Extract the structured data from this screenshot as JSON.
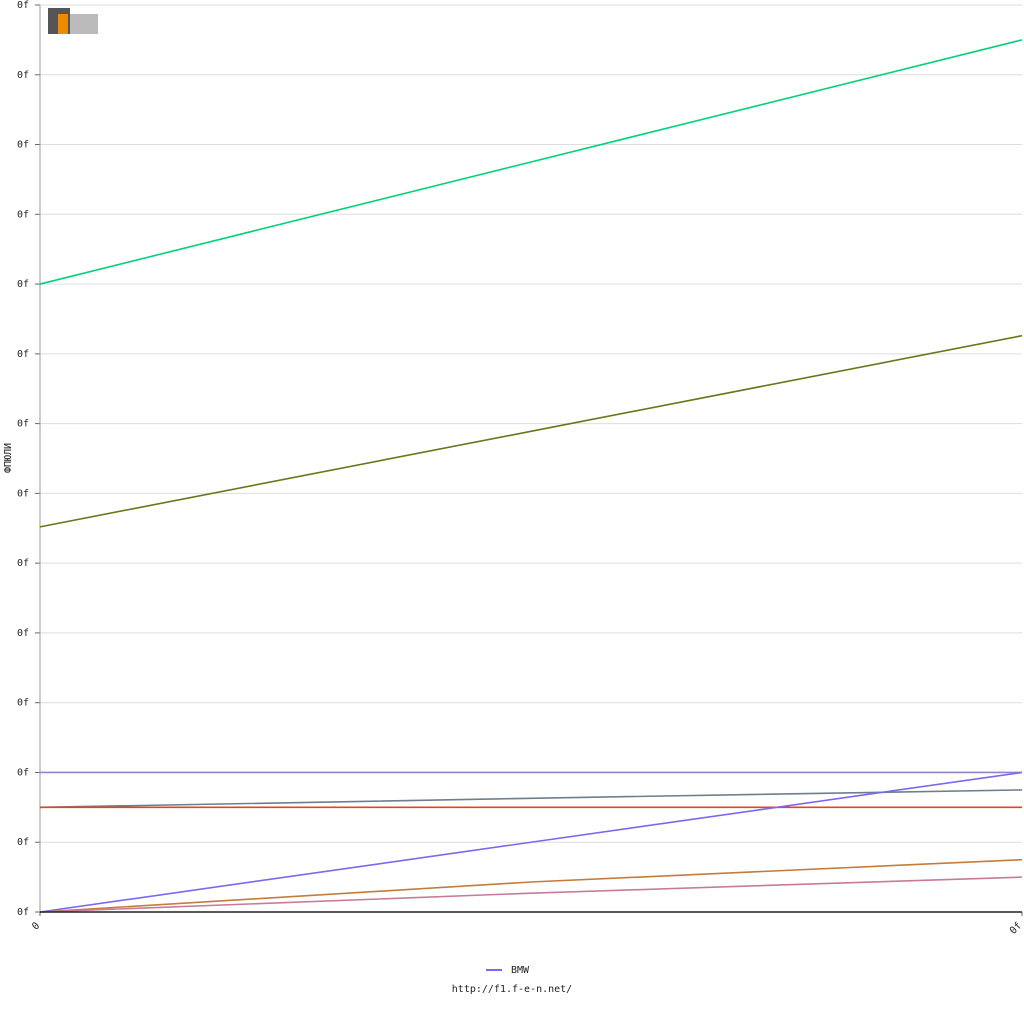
{
  "chart_data": {
    "type": "line",
    "y_label": "ФПЮЛИ",
    "footer": "http://f1.f-e-n.net/",
    "x": [
      0,
      0.5,
      1
    ],
    "xlim": [
      0,
      1
    ],
    "xticks": [
      0,
      {
        "value": 1,
        "label": "0f"
      }
    ],
    "ylim": [
      0,
      13
    ],
    "yticks": [
      {
        "value": 0,
        "label": "0f"
      },
      {
        "value": 1,
        "label": "0f"
      },
      {
        "value": 2,
        "label": "0f"
      },
      {
        "value": 3,
        "label": "0f"
      },
      {
        "value": 4,
        "label": "0f"
      },
      {
        "value": 5,
        "label": "0f"
      },
      {
        "value": 6,
        "label": "0f"
      },
      {
        "value": 7,
        "label": "0f"
      },
      {
        "value": 8,
        "label": "0f"
      },
      {
        "value": 9,
        "label": "0f"
      },
      {
        "value": 10,
        "label": "0f"
      },
      {
        "value": 11,
        "label": "0f"
      },
      {
        "value": 12,
        "label": "0f"
      },
      {
        "value": 13,
        "label": "0f"
      }
    ],
    "grid": true,
    "series": [
      {
        "color": "#00d27a",
        "values": [
          9.0,
          10.75,
          12.5
        ]
      },
      {
        "color": "#66781a",
        "values": [
          5.52,
          6.89,
          8.26
        ]
      },
      {
        "color": "#9a7ed0",
        "values": [
          2.0,
          2.0,
          2.0
        ]
      },
      {
        "color": "#6e7f8c",
        "values": [
          1.5,
          1.63,
          1.75
        ]
      },
      {
        "color": "#e04818",
        "values": [
          1.5,
          1.5,
          1.5
        ]
      },
      {
        "name": "BMW",
        "color": "#7b68ee",
        "values": [
          0,
          1.0,
          2.0
        ]
      },
      {
        "color": "#c47c3c",
        "values": [
          0,
          0.43,
          0.75
        ]
      },
      {
        "color": "#c87a98",
        "values": [
          0,
          0.27,
          0.5
        ]
      },
      {
        "color": "#222222",
        "values": [
          0,
          0,
          0
        ]
      }
    ]
  }
}
